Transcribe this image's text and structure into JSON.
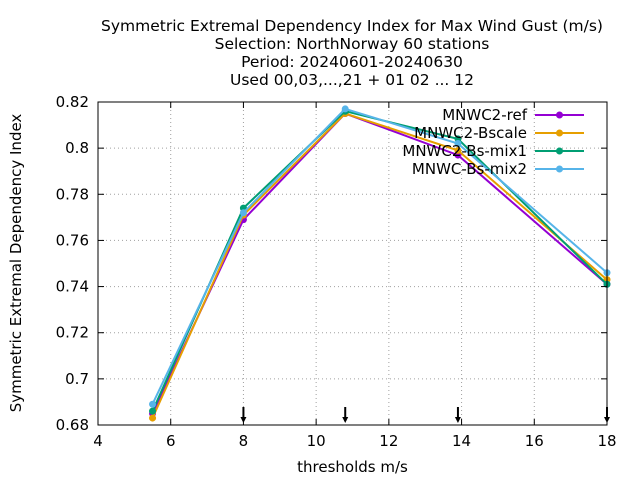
{
  "chart_data": {
    "type": "line",
    "title_lines": [
      "Symmetric Extremal Dependency Index  for Max Wind Gust (m/s)",
      "Selection: NorthNorway     60 stations",
      "Period: 20240601-20240630",
      "Used 00,03,...,21 + 01 02 ... 12"
    ],
    "xlabel": "thresholds m/s",
    "ylabel": "Symmetric Extremal Dependency Index",
    "xlim": [
      4,
      18
    ],
    "ylim": [
      0.68,
      0.82
    ],
    "xticks": [
      4,
      6,
      8,
      10,
      12,
      14,
      16,
      18
    ],
    "xtick_labels": [
      "4",
      "6",
      "8",
      "10",
      "12",
      "14",
      "16",
      "18"
    ],
    "yticks": [
      0.68,
      0.7,
      0.72,
      0.74,
      0.76,
      0.78,
      0.8,
      0.82
    ],
    "ytick_labels": [
      "0.68",
      "0.7",
      "0.72",
      "0.74",
      "0.76",
      "0.78",
      "0.8",
      "0.82"
    ],
    "grid": true,
    "legend_position": "top-right",
    "threshold_arrows_x": [
      8,
      10.8,
      13.9,
      18
    ],
    "series": [
      {
        "name": "MNWC2-ref",
        "color": "#9400d3",
        "x": [
          5.5,
          8,
          10.8,
          13.9,
          18
        ],
        "y": [
          0.685,
          0.769,
          0.815,
          0.797,
          0.741
        ]
      },
      {
        "name": "MNWC2-Bscale",
        "color": "#e69f00",
        "x": [
          5.5,
          8,
          10.8,
          13.9,
          18
        ],
        "y": [
          0.683,
          0.771,
          0.815,
          0.799,
          0.743
        ]
      },
      {
        "name": "MNWC2-Bs-mix1",
        "color": "#009e73",
        "x": [
          5.5,
          8,
          10.8,
          13.9,
          18
        ],
        "y": [
          0.686,
          0.774,
          0.816,
          0.804,
          0.741
        ]
      },
      {
        "name": "MNWC-Bs-mix2",
        "color": "#56b4e9",
        "x": [
          5.5,
          8,
          10.8,
          13.9,
          18
        ],
        "y": [
          0.689,
          0.772,
          0.817,
          0.802,
          0.746
        ]
      }
    ]
  }
}
